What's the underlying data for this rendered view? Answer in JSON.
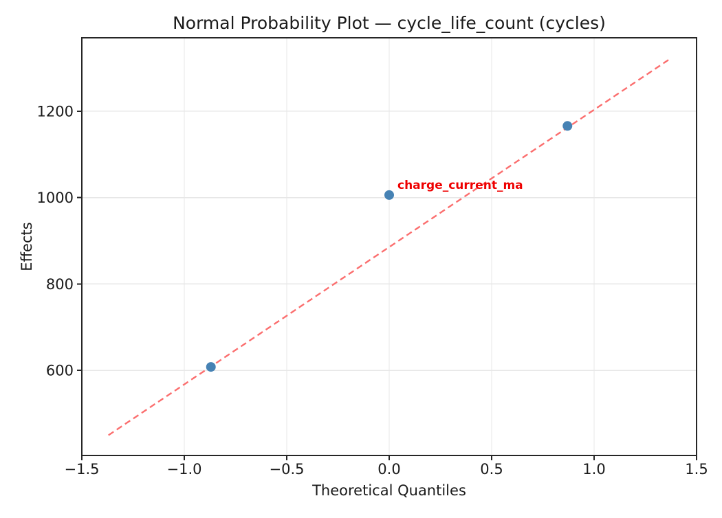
{
  "chart_data": {
    "type": "scatter",
    "title": "Normal Probability Plot — cycle_life_count (cycles)",
    "xlabel": "Theoretical Quantiles",
    "ylabel": "Effects",
    "xlim": [
      -1.5,
      1.5
    ],
    "ylim": [
      403,
      1370
    ],
    "grid": true,
    "x_ticks": [
      {
        "value": -1.5,
        "label": "−1.5"
      },
      {
        "value": -1.0,
        "label": "−1.0"
      },
      {
        "value": -0.5,
        "label": "−0.5"
      },
      {
        "value": 0.0,
        "label": "0.0"
      },
      {
        "value": 0.5,
        "label": "0.5"
      },
      {
        "value": 1.0,
        "label": "1.0"
      },
      {
        "value": 1.5,
        "label": "1.5"
      }
    ],
    "y_ticks": [
      {
        "value": 600,
        "label": "600"
      },
      {
        "value": 800,
        "label": "800"
      },
      {
        "value": 1000,
        "label": "1000"
      },
      {
        "value": 1200,
        "label": "1200"
      }
    ],
    "points": [
      {
        "x": -0.87,
        "y": 608
      },
      {
        "x": 0.0,
        "y": 1006,
        "annotation": "charge_current_ma"
      },
      {
        "x": 0.87,
        "y": 1166
      }
    ],
    "fit_line": {
      "x1": -1.37,
      "y1": 450,
      "x2": 1.37,
      "y2": 1321,
      "style": "dashed"
    },
    "colors": {
      "point": "#4682b4",
      "fit_line": "#fb6e6e",
      "annotation": "#ee0000",
      "grid": "#e7e7e7",
      "axis": "#262626",
      "text": "#1a1a1a"
    }
  }
}
